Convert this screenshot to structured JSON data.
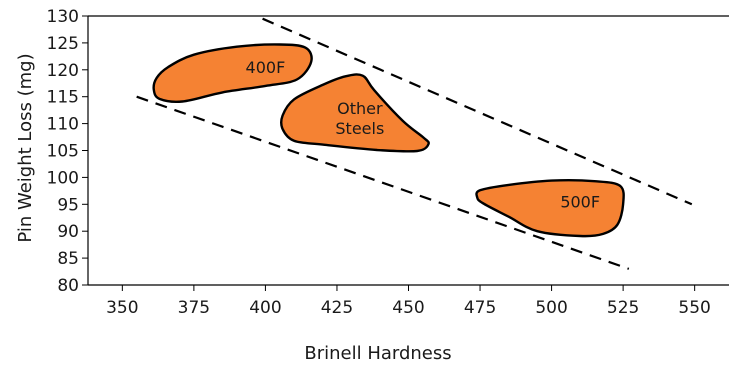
{
  "chart_data": {
    "type": "scatter",
    "title": "",
    "xlabel": "Brinell Hardness",
    "ylabel": "Pin Weight Loss (mg)",
    "xlim": [
      338,
      562
    ],
    "ylim": [
      80,
      130
    ],
    "x_ticks": [
      350,
      375,
      400,
      425,
      450,
      475,
      500,
      525,
      550
    ],
    "y_ticks": [
      80,
      85,
      90,
      95,
      100,
      105,
      110,
      115,
      120,
      125,
      130
    ],
    "grid": false,
    "fill_color": "#F58233",
    "outline_color": "#000000",
    "regions": [
      {
        "label": "400F",
        "label_pos": [
          400,
          120.5
        ],
        "outline": [
          [
            362,
            118.5
          ],
          [
            366,
            120.5
          ],
          [
            375,
            122.8
          ],
          [
            390,
            124.3
          ],
          [
            405,
            124.7
          ],
          [
            414,
            124.1
          ],
          [
            416,
            121.5
          ],
          [
            411,
            118.2
          ],
          [
            400,
            117.0
          ],
          [
            385,
            115.8
          ],
          [
            371,
            114.1
          ],
          [
            363,
            114.6
          ],
          [
            361,
            116.3
          ]
        ]
      },
      {
        "label": "Other Steels",
        "label_lines": [
          "Other",
          "Steels"
        ],
        "label_pos": [
          433,
          111.0
        ],
        "outline": [
          [
            410,
            114.5
          ],
          [
            420,
            117.2
          ],
          [
            428,
            118.8
          ],
          [
            434,
            118.9
          ],
          [
            438,
            116.2
          ],
          [
            448,
            110.5
          ],
          [
            455,
            107.5
          ],
          [
            457,
            106.2
          ],
          [
            453,
            104.9
          ],
          [
            439,
            105.1
          ],
          [
            420,
            106.1
          ],
          [
            410,
            106.8
          ],
          [
            406,
            109.0
          ],
          [
            406,
            111.5
          ]
        ]
      },
      {
        "label": "500F",
        "label_pos": [
          510,
          95.5
        ],
        "outline": [
          [
            475,
            97.6
          ],
          [
            485,
            98.6
          ],
          [
            500,
            99.4
          ],
          [
            515,
            99.3
          ],
          [
            524,
            98.4
          ],
          [
            525,
            95.0
          ],
          [
            523,
            91.2
          ],
          [
            518,
            89.5
          ],
          [
            510,
            89.1
          ],
          [
            495,
            90.0
          ],
          [
            485,
            92.7
          ],
          [
            476,
            95.2
          ],
          [
            474,
            96.3
          ]
        ]
      }
    ],
    "bounds": [
      {
        "x": [
          399,
          549
        ],
        "y": [
          129.5,
          95.0
        ]
      },
      {
        "x": [
          355,
          527
        ],
        "y": [
          115.0,
          83.0
        ]
      }
    ]
  }
}
